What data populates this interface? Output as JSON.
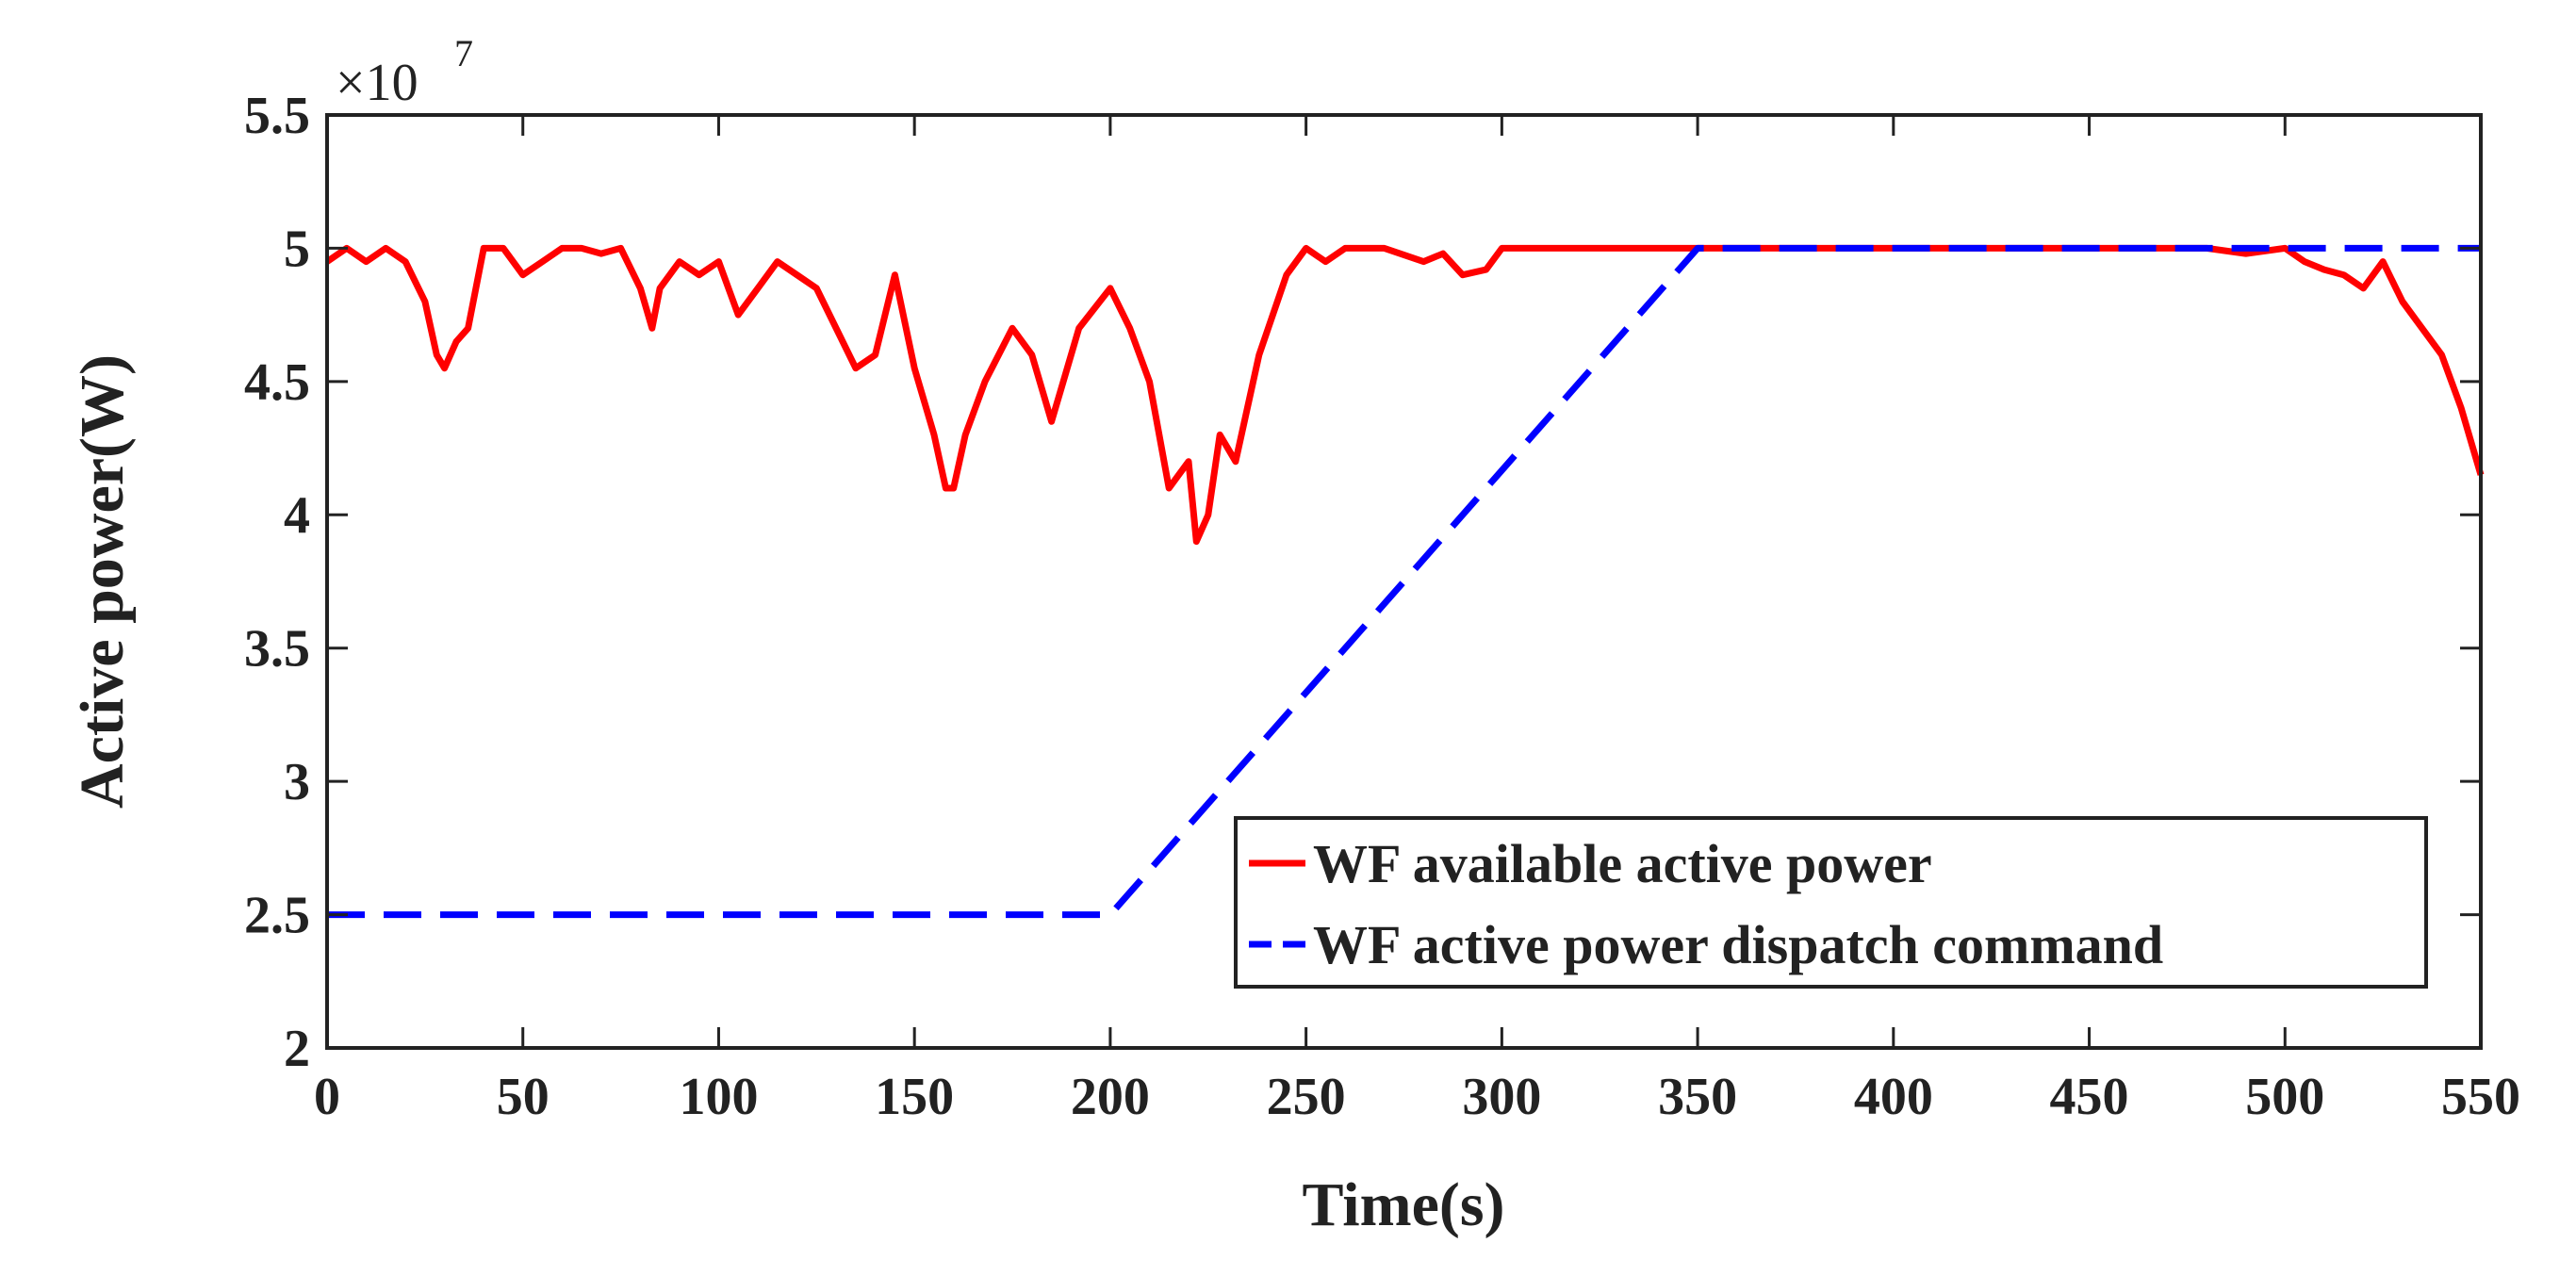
{
  "chart_data": {
    "type": "line",
    "title": "",
    "xlabel": "Time(s)",
    "ylabel": "Active power(W)",
    "y_multiplier_label": "×10",
    "y_multiplier_exponent": "7",
    "xlim": [
      0,
      550
    ],
    "ylim": [
      2,
      5.5
    ],
    "grid": false,
    "x_ticks": [
      0,
      50,
      100,
      150,
      200,
      250,
      300,
      350,
      400,
      450,
      500,
      550
    ],
    "y_ticks": [
      2,
      2.5,
      3,
      3.5,
      4,
      4.5,
      5,
      5.5
    ],
    "x_tick_labels": [
      "0",
      "50",
      "100",
      "150",
      "200",
      "250",
      "300",
      "350",
      "400",
      "450",
      "500",
      "550"
    ],
    "y_tick_labels": [
      "2",
      "2.5",
      "3",
      "3.5",
      "4",
      "4.5",
      "5",
      "5.5"
    ],
    "legend_position": "bottom-right",
    "series": [
      {
        "name": "WF available active power",
        "color": "#ff0000",
        "style": "solid",
        "x": [
          0,
          5,
          10,
          15,
          20,
          25,
          28,
          30,
          33,
          36,
          40,
          45,
          50,
          55,
          60,
          65,
          70,
          75,
          80,
          83,
          85,
          90,
          95,
          100,
          105,
          110,
          115,
          120,
          125,
          130,
          135,
          140,
          145,
          150,
          155,
          158,
          160,
          163,
          168,
          175,
          180,
          185,
          188,
          192,
          200,
          205,
          210,
          215,
          220,
          222,
          225,
          228,
          232,
          238,
          245,
          250,
          255,
          260,
          265,
          270,
          280,
          285,
          290,
          296,
          300,
          350,
          400,
          450,
          480,
          490,
          500,
          505,
          510,
          515,
          520,
          525,
          530,
          535,
          540,
          545,
          550
        ],
        "values": [
          4.95,
          5.0,
          4.95,
          5.0,
          4.95,
          4.8,
          4.6,
          4.55,
          4.65,
          4.7,
          5.0,
          5.0,
          4.9,
          4.95,
          5.0,
          5.0,
          4.98,
          5.0,
          4.85,
          4.7,
          4.85,
          4.95,
          4.9,
          4.95,
          4.75,
          4.85,
          4.95,
          4.9,
          4.85,
          4.7,
          4.55,
          4.6,
          4.9,
          4.55,
          4.3,
          4.1,
          4.1,
          4.3,
          4.5,
          4.7,
          4.6,
          4.35,
          4.5,
          4.7,
          4.85,
          4.7,
          4.5,
          4.1,
          4.2,
          3.9,
          4.0,
          4.3,
          4.2,
          4.6,
          4.9,
          5.0,
          4.95,
          5.0,
          5.0,
          5.0,
          4.95,
          4.98,
          4.9,
          4.92,
          5.0,
          5.0,
          5.0,
          5.0,
          5.0,
          4.98,
          5.0,
          4.95,
          4.92,
          4.9,
          4.85,
          4.95,
          4.8,
          4.7,
          4.6,
          4.4,
          4.15
        ]
      },
      {
        "name": "WF active power dispatch command",
        "color": "#0000ff",
        "style": "dashed",
        "x": [
          0,
          200,
          350,
          550
        ],
        "values": [
          2.5,
          2.5,
          5.0,
          5.0
        ]
      }
    ]
  }
}
